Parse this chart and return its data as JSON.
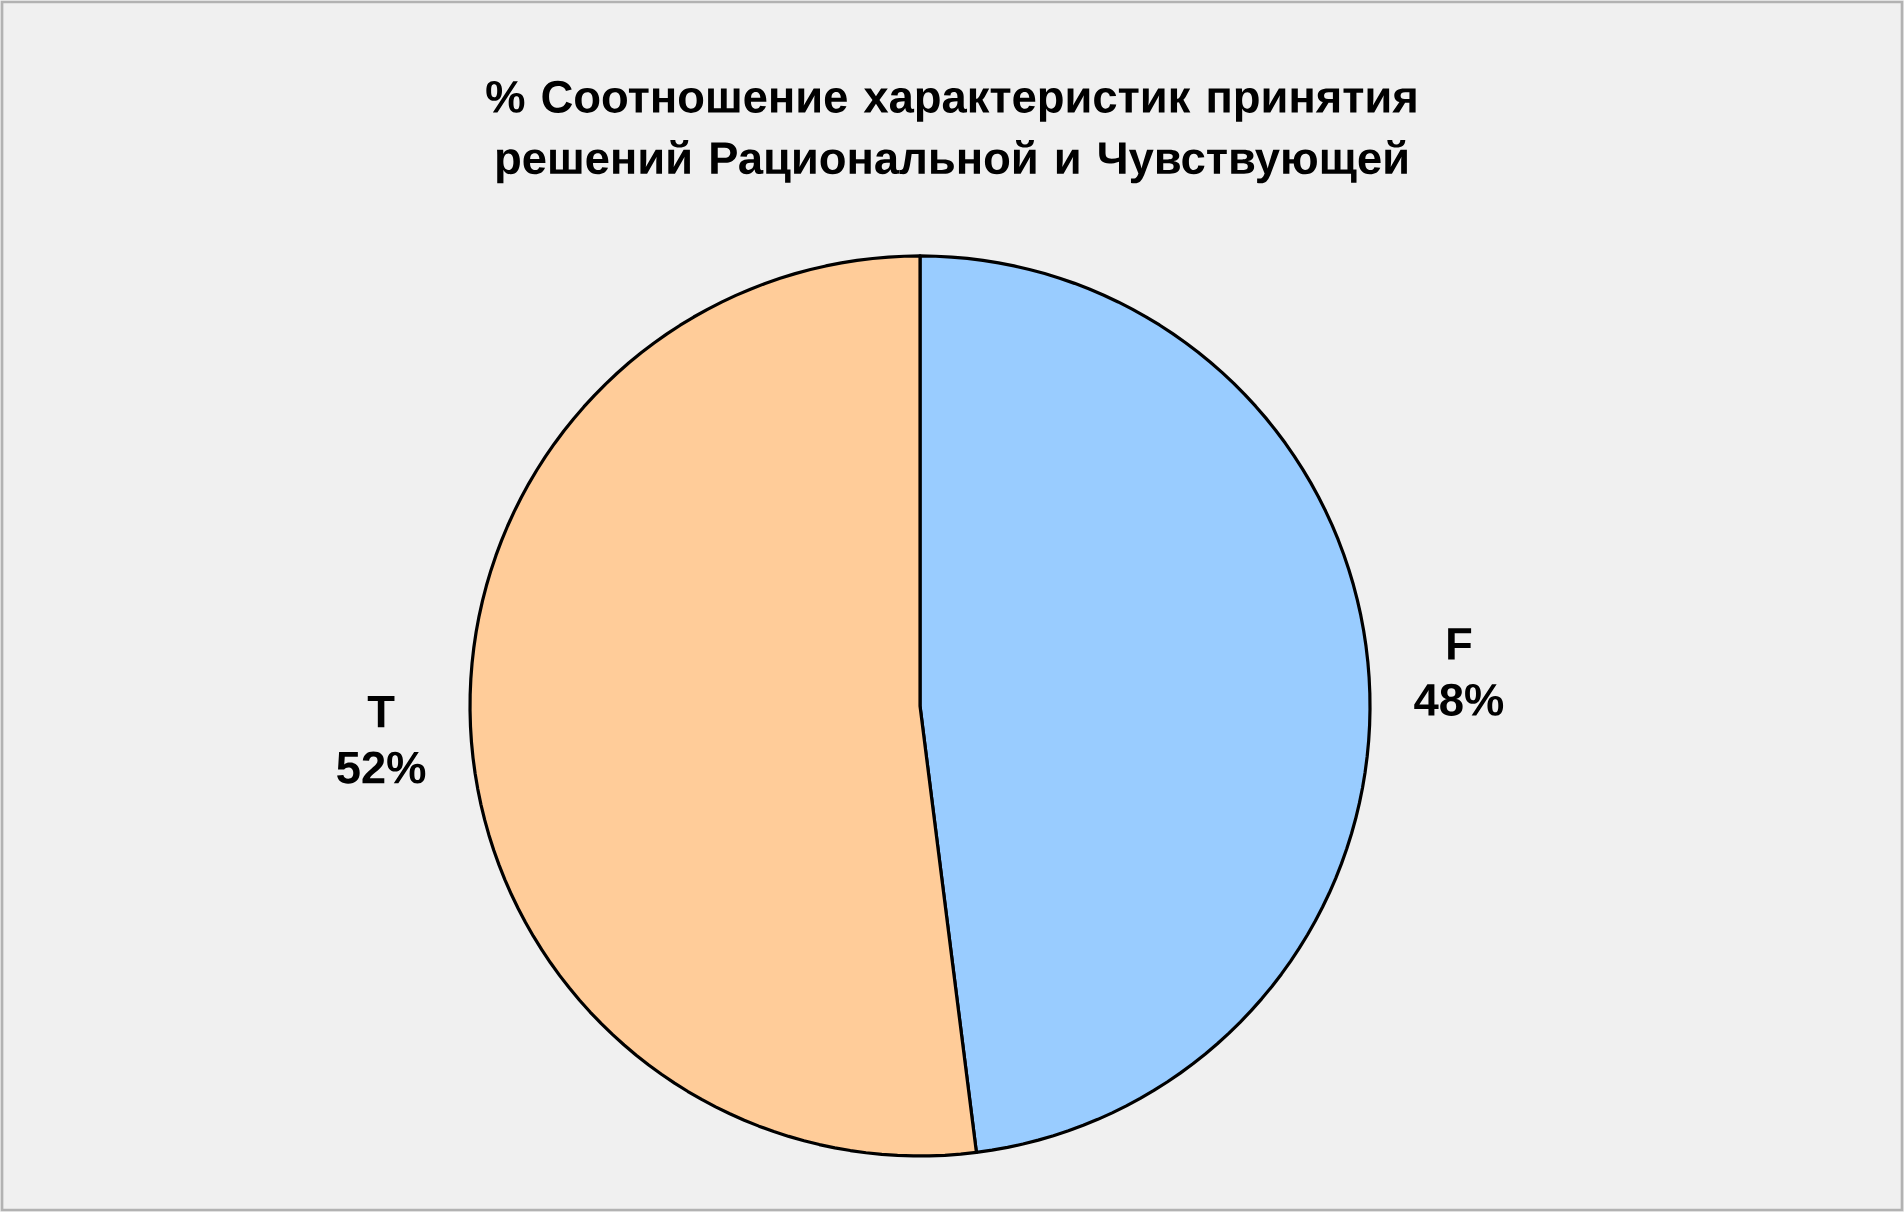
{
  "chart_data": {
    "type": "pie",
    "title": "% Соотношение характеристик принятия решений Рациональной и Чувствующей",
    "categories": [
      "F",
      "T"
    ],
    "values": [
      48,
      52
    ],
    "colors": [
      "#99ccff",
      "#ffcc99"
    ],
    "value_labels": [
      "48%",
      "52%"
    ]
  }
}
